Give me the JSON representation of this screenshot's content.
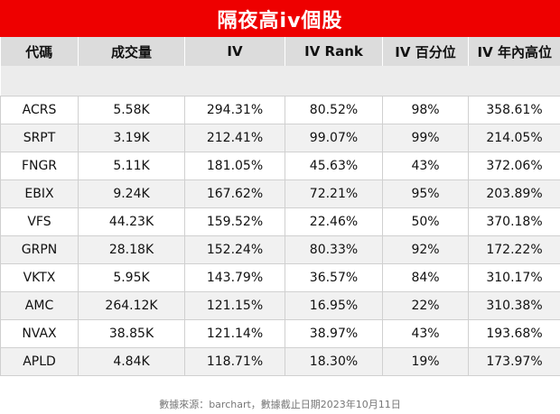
{
  "title": "隔夜高iv個股",
  "headers": [
    "代碼",
    "成交量",
    "IV",
    "IV Rank",
    "IV 百分位",
    "IV 年內高位"
  ],
  "rows": [
    [
      "ACRS",
      "5.58K",
      "294.31%",
      "80.52%",
      "98%",
      "358.61%"
    ],
    [
      "SRPT",
      "3.19K",
      "212.41%",
      "99.07%",
      "99%",
      "214.05%"
    ],
    [
      "FNGR",
      "5.11K",
      "181.05%",
      "45.63%",
      "43%",
      "372.06%"
    ],
    [
      "EBIX",
      "9.24K",
      "167.62%",
      "72.21%",
      "95%",
      "203.89%"
    ],
    [
      "VFS",
      "44.23K",
      "159.52%",
      "22.46%",
      "50%",
      "370.18%"
    ],
    [
      "GRPN",
      "28.18K",
      "152.24%",
      "80.33%",
      "92%",
      "172.22%"
    ],
    [
      "VKTX",
      "5.95K",
      "143.79%",
      "36.57%",
      "84%",
      "310.17%"
    ],
    [
      "AMC",
      "264.12K",
      "121.15%",
      "16.95%",
      "22%",
      "310.38%"
    ],
    [
      "NVAX",
      "38.85K",
      "121.14%",
      "38.97%",
      "43%",
      "193.68%"
    ],
    [
      "APLD",
      "4.84K",
      "118.71%",
      "18.30%",
      "19%",
      "173.97%"
    ]
  ],
  "footer": "數據來源：barchart，數據截止日期2023年10月11日",
  "colors": {
    "title_background": "#ee0000",
    "header_background": "#dcdcdc"
  }
}
